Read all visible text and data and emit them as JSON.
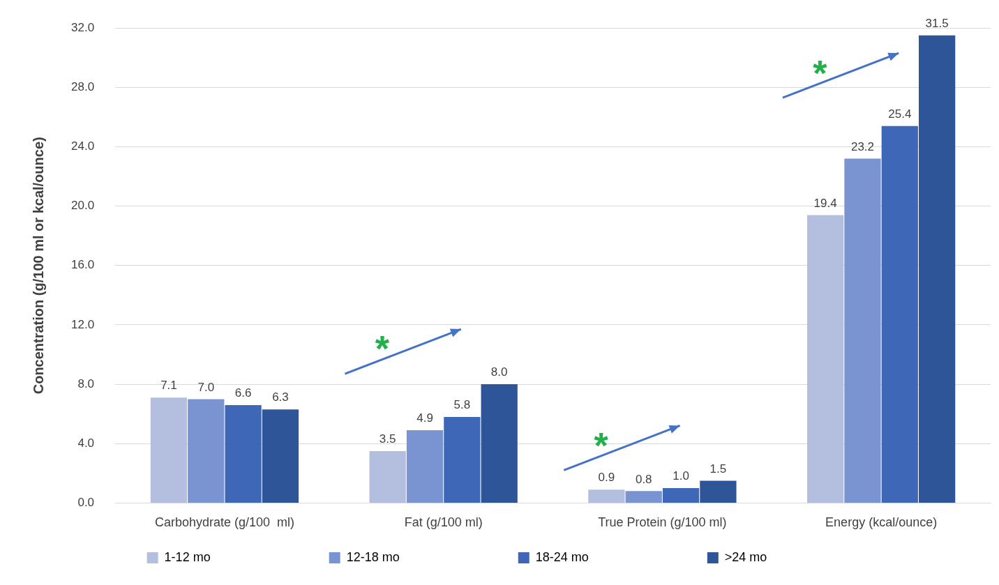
{
  "chart_data": {
    "type": "bar",
    "ylabel": "Concentration (g/100 ml or kcal/ounce)",
    "categories": [
      "Carbohydrate (g/100  ml)",
      "Fat (g/100 ml)",
      "True Protein (g/100 ml)",
      "Energy (kcal/ounce)"
    ],
    "series": [
      {
        "name": "1-12 mo",
        "color": "#b4bfe0",
        "values": [
          7.1,
          3.5,
          0.9,
          19.4
        ],
        "value_labels": [
          "7.1",
          "3.5",
          "0.9",
          "19.4"
        ]
      },
      {
        "name": "12-18 mo",
        "color": "#7a94d2",
        "values": [
          7.0,
          4.9,
          0.8,
          23.2
        ],
        "value_labels": [
          "7.0",
          "4.9",
          "0.8",
          "23.2"
        ]
      },
      {
        "name": "18-24 mo",
        "color": "#3f67b8",
        "values": [
          6.6,
          5.8,
          1.0,
          25.4
        ],
        "value_labels": [
          "6.6",
          "5.8",
          "1.0",
          "25.4"
        ]
      },
      {
        "name": ">24 mo",
        "color": "#2e5597",
        "values": [
          6.3,
          8.0,
          1.5,
          31.5
        ],
        "value_labels": [
          "6.3",
          "8.0",
          "1.5",
          "31.5"
        ]
      }
    ],
    "ylim": [
      0,
      32
    ],
    "yticks": [
      {
        "value": 0,
        "label": "0.0"
      },
      {
        "value": 4,
        "label": "4.0"
      },
      {
        "value": 8,
        "label": "8.0"
      },
      {
        "value": 12,
        "label": "12.0"
      },
      {
        "value": 16,
        "label": "16.0"
      },
      {
        "value": 20,
        "label": "20.0"
      },
      {
        "value": 24,
        "label": "24.0"
      },
      {
        "value": 28,
        "label": "28.0"
      },
      {
        "value": 32,
        "label": "32.0"
      }
    ],
    "grid": "y",
    "legend": "bottom",
    "annotations": [
      "*",
      "*",
      "*"
    ]
  }
}
